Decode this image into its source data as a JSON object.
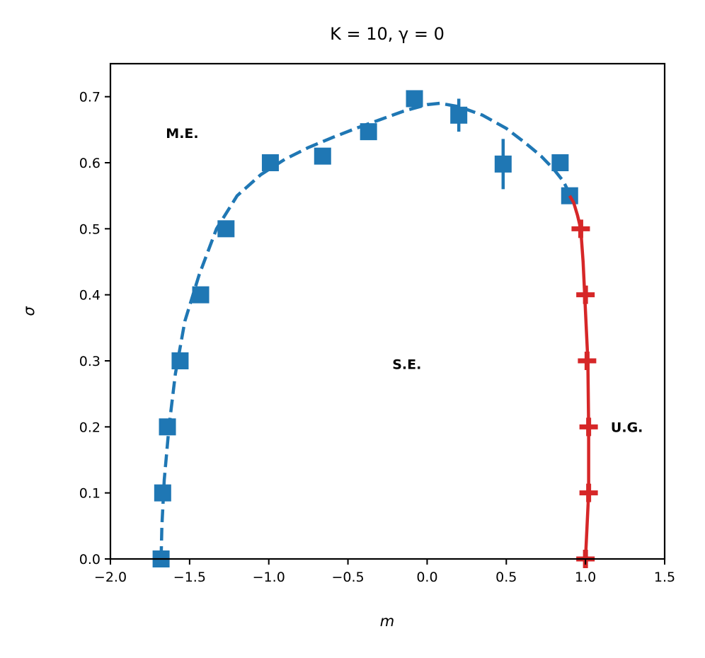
{
  "chart_data": {
    "type": "scatter",
    "title": "K = 10, γ = 0",
    "xlabel": "m",
    "ylabel": "σ",
    "xlim": [
      -2.0,
      1.5
    ],
    "ylim": [
      0.0,
      0.75
    ],
    "x_ticks": [
      "−2.0",
      "−1.5",
      "−1.0",
      "−0.5",
      "0.0",
      "0.5",
      "1.0",
      "1.5"
    ],
    "x_tick_values": [
      -2.0,
      -1.5,
      -1.0,
      -0.5,
      0.0,
      0.5,
      1.0,
      1.5
    ],
    "y_ticks": [
      "0.0",
      "0.1",
      "0.2",
      "0.3",
      "0.4",
      "0.5",
      "0.6",
      "0.7"
    ],
    "y_tick_values": [
      0.0,
      0.1,
      0.2,
      0.3,
      0.4,
      0.5,
      0.6,
      0.7
    ],
    "grid": false,
    "annotations": [
      {
        "text": "M.E.",
        "x": -1.65,
        "y": 0.645
      },
      {
        "text": "S.E.",
        "x": -0.22,
        "y": 0.295
      },
      {
        "text": "U.G.",
        "x": 1.16,
        "y": 0.2
      }
    ],
    "series": [
      {
        "marker": "square",
        "color": "#1f77b4",
        "points": [
          {
            "x": -1.68,
            "y": 0.0,
            "yerr": 0.0
          },
          {
            "x": -1.67,
            "y": 0.1,
            "yerr": 0.0
          },
          {
            "x": -1.64,
            "y": 0.2,
            "yerr": 0.0
          },
          {
            "x": -1.56,
            "y": 0.3,
            "yerr": 0.0
          },
          {
            "x": -1.43,
            "y": 0.4,
            "yerr": 0.0
          },
          {
            "x": -1.27,
            "y": 0.5,
            "yerr": 0.0
          },
          {
            "x": -0.99,
            "y": 0.6,
            "yerr": 0.0
          },
          {
            "x": -0.66,
            "y": 0.61,
            "yerr": 0.0
          },
          {
            "x": -0.37,
            "y": 0.647,
            "yerr": 0.0
          },
          {
            "x": -0.08,
            "y": 0.697,
            "yerr": 0.0
          },
          {
            "x": 0.2,
            "y": 0.672,
            "yerr": 0.025
          },
          {
            "x": 0.48,
            "y": 0.598,
            "yerr": 0.038
          },
          {
            "x": 0.84,
            "y": 0.6,
            "yerr": 0.0
          },
          {
            "x": 0.9,
            "y": 0.55,
            "yerr": 0.0
          }
        ],
        "fit_line": {
          "style": "dashed",
          "x": [
            -1.68,
            -1.675,
            -1.66,
            -1.63,
            -1.59,
            -1.53,
            -1.44,
            -1.33,
            -1.2,
            -1.05,
            -0.9,
            -0.75,
            -0.6,
            -0.45,
            -0.3,
            -0.15,
            0.0,
            0.08,
            0.2,
            0.35,
            0.5,
            0.62,
            0.72,
            0.8,
            0.86,
            0.9
          ],
          "y": [
            0.0,
            0.05,
            0.12,
            0.2,
            0.28,
            0.36,
            0.43,
            0.5,
            0.55,
            0.582,
            0.605,
            0.623,
            0.638,
            0.652,
            0.665,
            0.678,
            0.688,
            0.69,
            0.685,
            0.672,
            0.652,
            0.63,
            0.61,
            0.59,
            0.572,
            0.553
          ]
        }
      },
      {
        "marker": "plus",
        "color": "#d62728",
        "points": [
          {
            "x": 1.0,
            "y": 0.0
          },
          {
            "x": 1.02,
            "y": 0.1
          },
          {
            "x": 1.02,
            "y": 0.2
          },
          {
            "x": 1.01,
            "y": 0.3
          },
          {
            "x": 1.0,
            "y": 0.4
          },
          {
            "x": 0.97,
            "y": 0.5
          }
        ],
        "fit_line": {
          "style": "solid",
          "x": [
            1.0,
            1.01,
            1.02,
            1.02,
            1.015,
            1.005,
            0.995,
            0.985,
            0.97,
            0.95,
            0.925,
            0.9
          ],
          "y": [
            0.0,
            0.05,
            0.1,
            0.2,
            0.3,
            0.35,
            0.4,
            0.45,
            0.5,
            0.52,
            0.54,
            0.55
          ]
        }
      }
    ]
  }
}
